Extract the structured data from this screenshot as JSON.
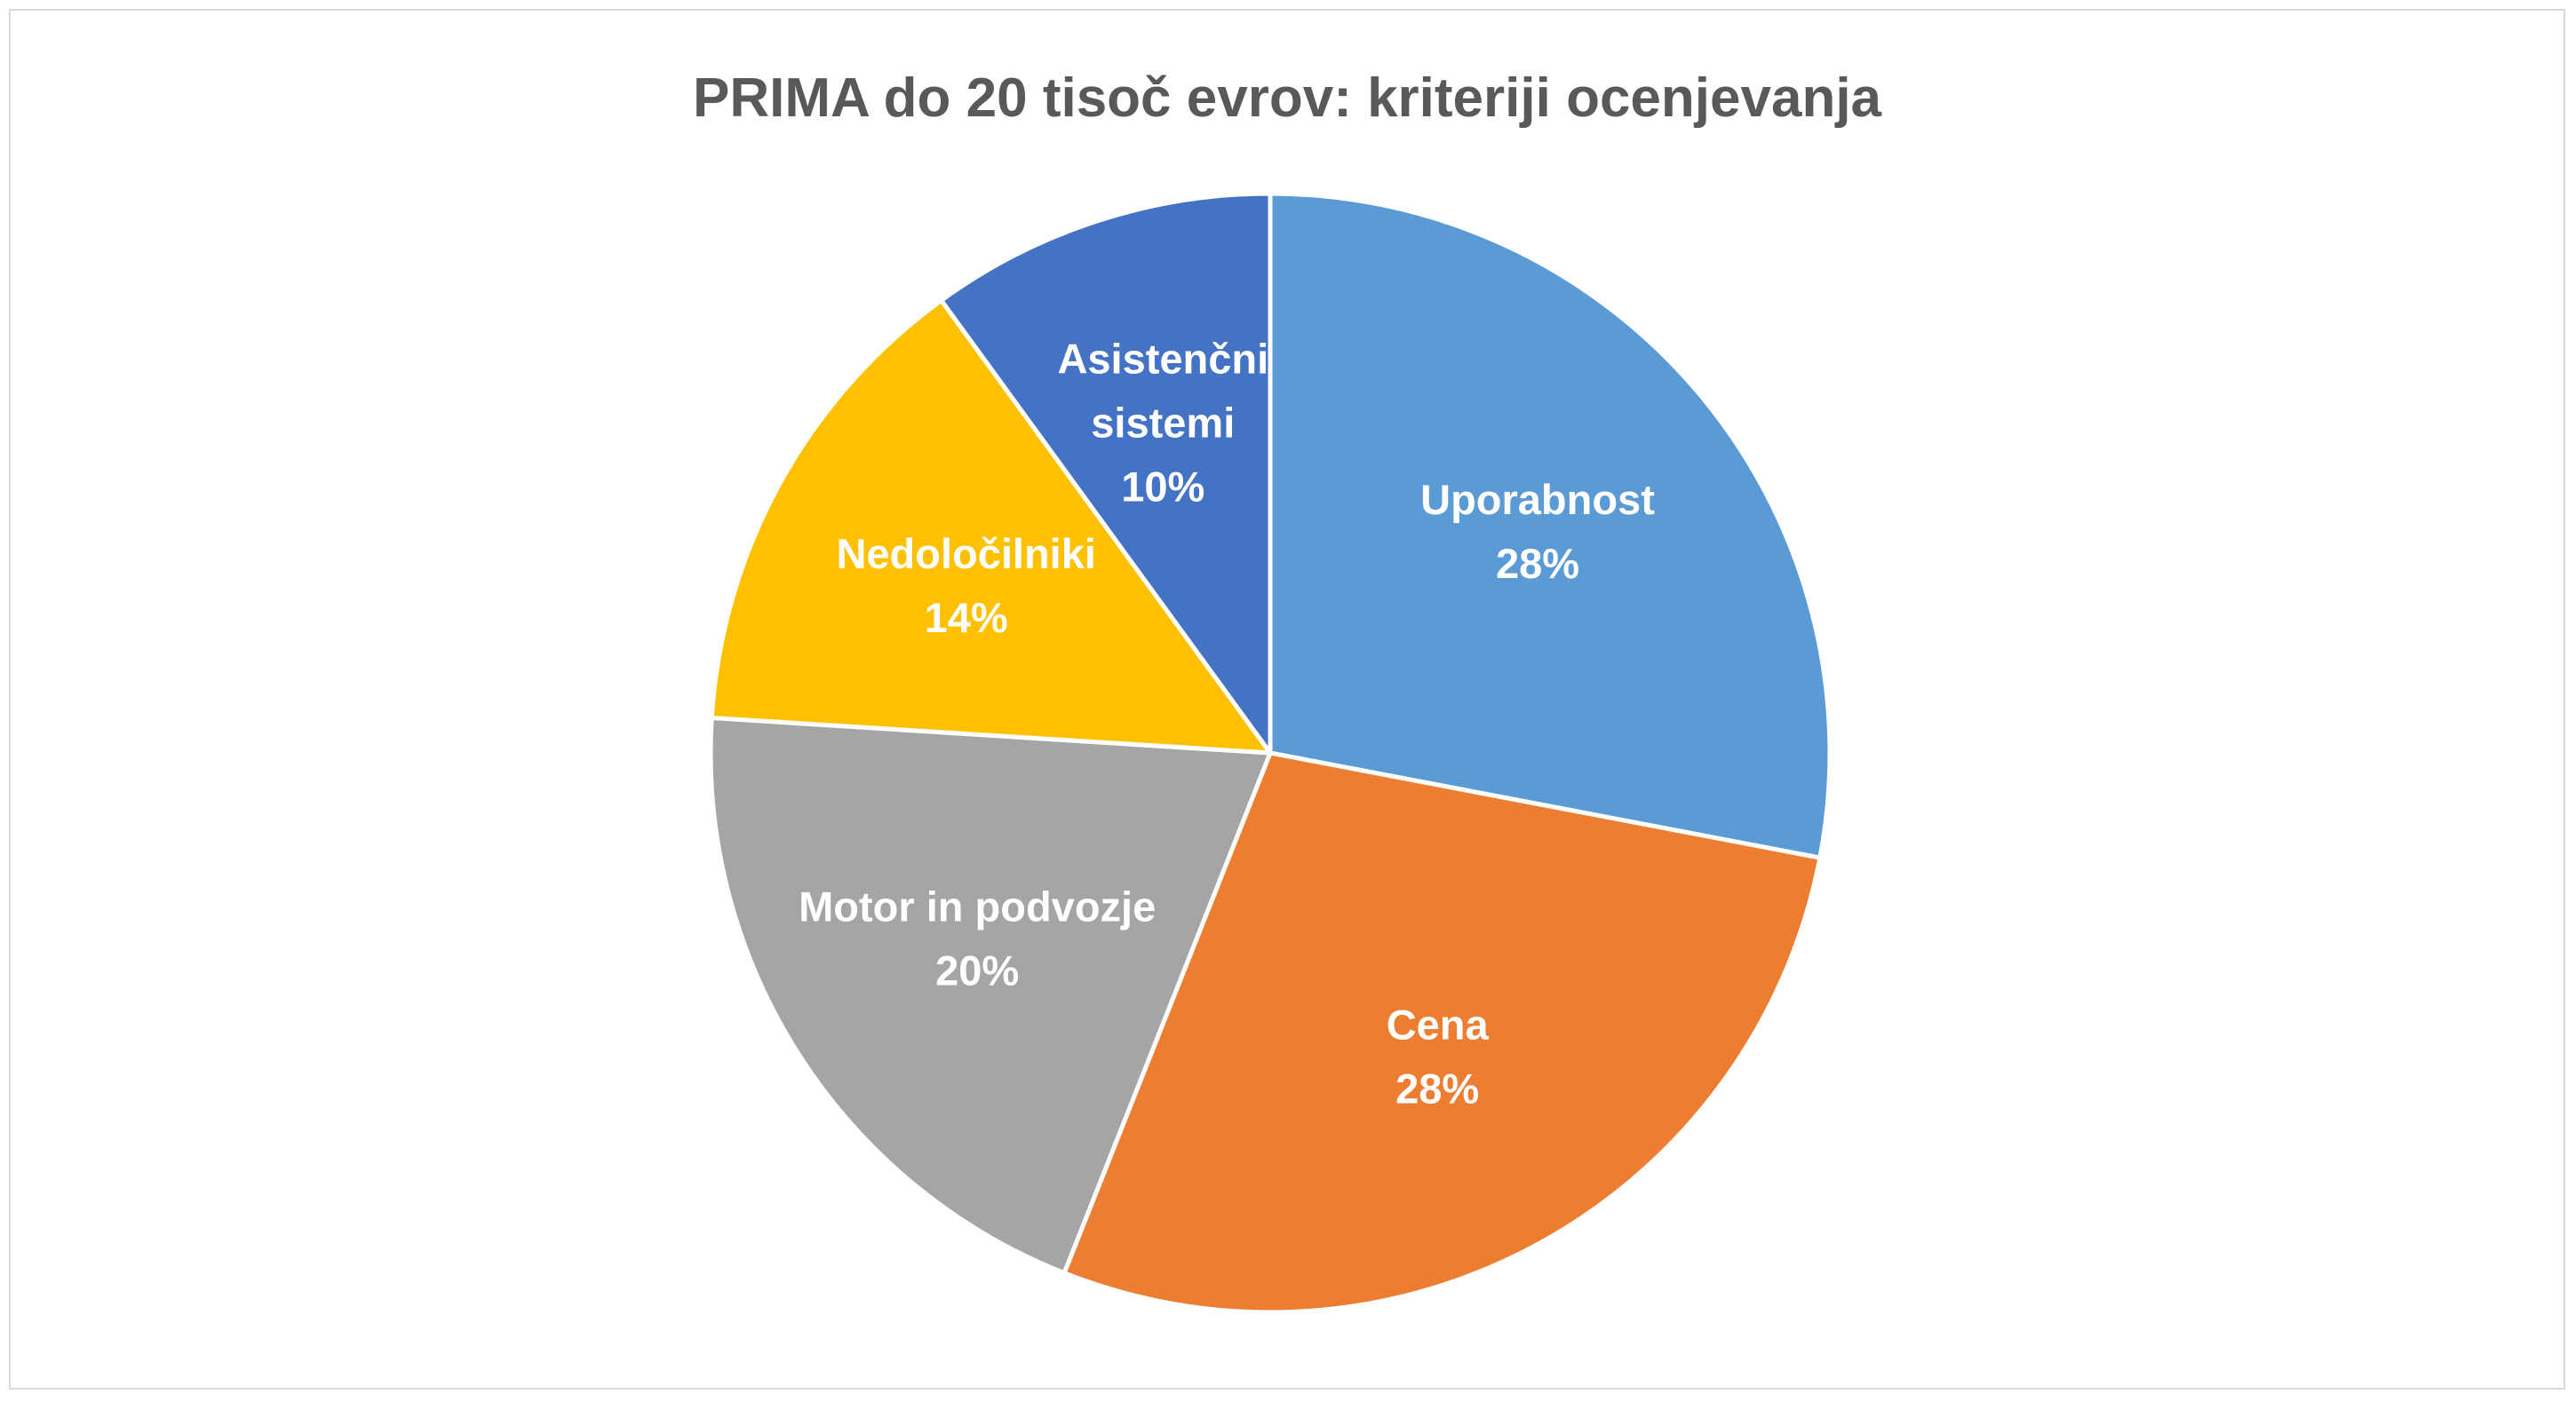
{
  "chart_data": {
    "type": "pie",
    "title": "PRIMA do 20 tisoč evrov: kriteriji ocenjevanja",
    "slices": [
      {
        "label_lines": [
          "Uporabnost"
        ],
        "percent_label": "28%",
        "value": 28,
        "color": "#5b9bd5"
      },
      {
        "label_lines": [
          "Cena"
        ],
        "percent_label": "28%",
        "value": 28,
        "color": "#ed7d31"
      },
      {
        "label_lines": [
          "Motor in podvozje"
        ],
        "percent_label": "20%",
        "value": 20,
        "color": "#a5a5a5"
      },
      {
        "label_lines": [
          "Nedoločilniki"
        ],
        "percent_label": "14%",
        "value": 14,
        "color": "#ffc000"
      },
      {
        "label_lines": [
          "Asistenčni",
          "sistemi"
        ],
        "percent_label": "10%",
        "value": 10,
        "color": "#4472c4"
      }
    ],
    "legend": "none",
    "start_angle_deg": 0,
    "direction": "clockwise"
  }
}
